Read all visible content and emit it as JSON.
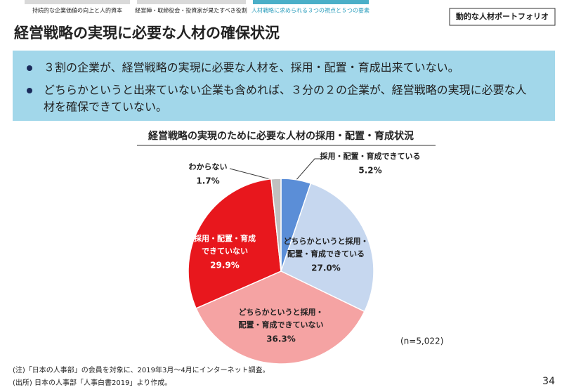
{
  "nav": {
    "tabs": [
      "持続的な企業価値の向上と人的資本",
      "経営陣・取締役会・投資家が果たすべき役割",
      "人材戦略に求められる３つの視点と５つの要素"
    ]
  },
  "badge": "動的な人材ポートフォリオ",
  "title": "経営戦略の実現に必要な人材の確保状況",
  "bullets": [
    [
      "３割の企業が、経営戦略の実現に必要な人材を、採用・配置・育成出来ていない。"
    ],
    [
      "どちらかというと出来ていない企業も含めれば、３分の２の企業が、経営戦略の実現に必要な人",
      "材を確保できていない。"
    ]
  ],
  "chart_data": {
    "type": "pie",
    "title": "経営戦略の実現のために必要な人材の採用・配置・育成状況",
    "categories": [
      [
        "採用・配置・育成できている"
      ],
      [
        "どちらかというと採用・",
        "配置・育成できている"
      ],
      [
        "どちらかというと採用・",
        "配置・育成できていない"
      ],
      [
        "採用・配置・育成",
        "できていない"
      ],
      [
        "わからない"
      ]
    ],
    "values": [
      5.2,
      27,
      36.3,
      29.9,
      1.7
    ],
    "value_labels": [
      "5.2%",
      "27.0%",
      "36.3%",
      "29.9%",
      "1.7%"
    ],
    "colors": [
      "#5b8ed7",
      "#c6d7ef",
      "#f5a3a3",
      "#e8171d",
      "#c0c0c0"
    ],
    "note": "(n=5,022)"
  },
  "footnotes": [
    "(注)「日本の人事部」の会員を対象に、2019年3月～4月にインターネット調査。",
    "(出所) 日本の人事部「人事白書2019」より作成。"
  ],
  "page_number": "34"
}
